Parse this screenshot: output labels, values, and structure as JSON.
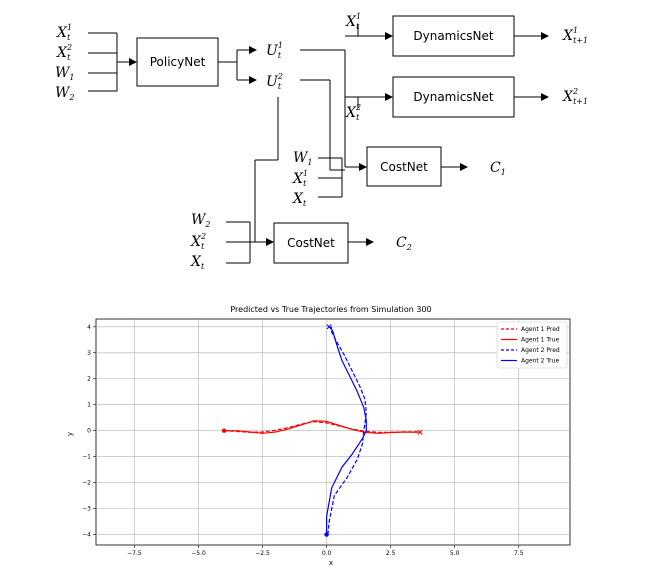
{
  "diagram": {
    "boxes": {
      "policy": "PolicyNet",
      "dyn1": "DynamicsNet",
      "dyn2": "DynamicsNet",
      "cost1": "CostNet",
      "cost2": "CostNet"
    },
    "inputs": {
      "x1": {
        "base": "X",
        "sup": "1",
        "sub": "t"
      },
      "x2": {
        "base": "X",
        "sup": "2",
        "sub": "t"
      },
      "w1": {
        "base": "W",
        "sub": "1"
      },
      "w2": {
        "base": "W",
        "sub": "2"
      }
    },
    "controls": {
      "u1": {
        "base": "U",
        "sup": "1",
        "sub": "t"
      },
      "u2": {
        "base": "U",
        "sup": "2",
        "sub": "t"
      }
    },
    "dyn_inputs": {
      "x1": {
        "base": "X",
        "sup": "1",
        "sub": "t"
      },
      "x2": {
        "base": "X",
        "sup": "2",
        "sub": "t"
      }
    },
    "outputs": {
      "x1next": {
        "base": "X",
        "sup": "1",
        "sub": "t+1"
      },
      "x2next": {
        "base": "X",
        "sup": "2",
        "sub": "t+1"
      },
      "c1": {
        "base": "C",
        "sub": "1"
      },
      "c2": {
        "base": "C",
        "sub": "2"
      }
    },
    "cost1_inputs": {
      "w": {
        "base": "W",
        "sub": "1"
      },
      "x": {
        "base": "X",
        "sup": "1",
        "sub": "t"
      },
      "xt": {
        "base": "X",
        "sub": "t"
      }
    },
    "cost2_inputs": {
      "w": {
        "base": "W",
        "sub": "2"
      },
      "x": {
        "base": "X",
        "sup": "2",
        "sub": "t"
      },
      "xt": {
        "base": "X",
        "sub": "t"
      }
    }
  },
  "chart_data": {
    "type": "line",
    "title": "Predicted vs True Trajectories from Simulation 300",
    "xlabel": "x",
    "ylabel": "y",
    "xlim": [
      -9,
      9.5
    ],
    "ylim": [
      -4.4,
      4.3
    ],
    "xticks": [
      -7.5,
      -5.0,
      -2.5,
      0.0,
      2.5,
      5.0,
      7.5
    ],
    "xtick_labels": [
      "−7.5",
      "−5.0",
      "−2.5",
      "0.0",
      "2.5",
      "5.0",
      "7.5"
    ],
    "yticks": [
      -4,
      -3,
      -2,
      -1,
      0,
      1,
      2,
      3,
      4
    ],
    "ytick_labels": [
      "−4",
      "−3",
      "−2",
      "−1",
      "0",
      "1",
      "2",
      "3",
      "4"
    ],
    "grid": true,
    "legend_position": "top-right",
    "series": [
      {
        "name": "Agent 1 Pred",
        "color": "#ff0000",
        "dash": true,
        "x": [
          -4.0,
          -3.5,
          -3.0,
          -2.5,
          -2.0,
          -1.5,
          -1.0,
          -0.5,
          0.0,
          0.5,
          1.0,
          1.5,
          2.0,
          2.5,
          3.0,
          3.5,
          3.7
        ],
        "y": [
          0.0,
          -0.03,
          -0.06,
          -0.05,
          0.02,
          0.12,
          0.25,
          0.35,
          0.3,
          0.18,
          0.06,
          -0.02,
          -0.06,
          -0.06,
          -0.05,
          -0.04,
          -0.05
        ]
      },
      {
        "name": "Agent 1 True",
        "color": "#ff0000",
        "dash": false,
        "x": [
          -4.0,
          -3.5,
          -3.0,
          -2.5,
          -2.0,
          -1.5,
          -1.0,
          -0.5,
          0.0,
          0.5,
          1.0,
          1.5,
          2.0,
          2.5,
          3.0,
          3.5,
          3.6
        ],
        "y": [
          0.0,
          0.0,
          -0.05,
          -0.1,
          -0.05,
          0.07,
          0.22,
          0.38,
          0.36,
          0.2,
          0.05,
          -0.06,
          -0.1,
          -0.07,
          -0.05,
          -0.06,
          -0.06
        ]
      },
      {
        "name": "Agent 2 Pred",
        "color": "#0000ff",
        "dash": true,
        "x": [
          0.05,
          0.1,
          0.3,
          0.8,
          1.2,
          1.4,
          1.45,
          1.5,
          1.55,
          1.5,
          1.3,
          1.0,
          0.7,
          0.35,
          0.15,
          0.2
        ],
        "y": [
          -4.0,
          -3.5,
          -2.5,
          -1.8,
          -1.1,
          -0.5,
          0.0,
          0.3,
          0.7,
          1.2,
          1.7,
          2.3,
          2.9,
          3.5,
          3.9,
          4.0
        ]
      },
      {
        "name": "Agent 2 True",
        "color": "#0000ff",
        "dash": false,
        "x": [
          0.0,
          0.0,
          0.2,
          0.6,
          1.0,
          1.4,
          1.55,
          1.55,
          1.45,
          1.2,
          0.9,
          0.6,
          0.4,
          0.25,
          0.15
        ],
        "y": [
          -4.0,
          -3.3,
          -2.2,
          -1.4,
          -0.9,
          -0.3,
          0.0,
          0.4,
          0.9,
          1.5,
          2.1,
          2.7,
          3.3,
          3.8,
          4.0
        ]
      }
    ],
    "markers": [
      {
        "series": "Agent 1 True",
        "x": -4.0,
        "y": 0.0,
        "color": "#ff0000",
        "shape": "dot"
      },
      {
        "series": "Agent 1 True",
        "x": 3.65,
        "y": -0.06,
        "color": "#ff0000",
        "shape": "x"
      },
      {
        "series": "Agent 2 True",
        "x": 0.0,
        "y": -4.0,
        "color": "#0000ff",
        "shape": "dot"
      },
      {
        "series": "Agent 2 True",
        "x": 0.1,
        "y": 4.0,
        "color": "#0000ff",
        "shape": "x"
      }
    ]
  }
}
